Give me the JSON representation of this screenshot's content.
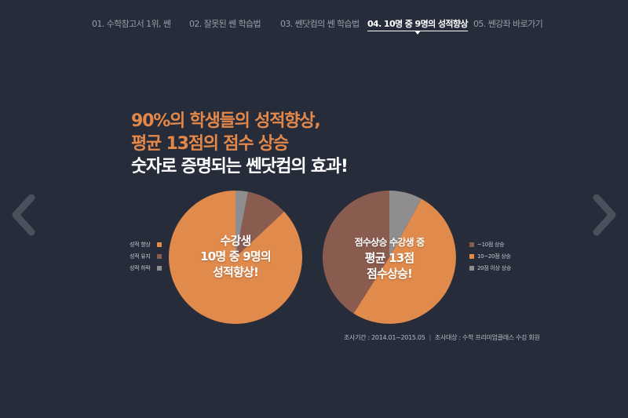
{
  "nav": {
    "items": [
      {
        "label": "01. 수학참고서 1위, 쎈"
      },
      {
        "label": "02. 잘못된 쎈 학습법"
      },
      {
        "label": "03. 쎈닷컴의 쎈 학습법"
      },
      {
        "label": "04. 10명 중 9명의 성적향상"
      },
      {
        "label": "05. 쎈강좌 바로가기"
      }
    ],
    "active_index": 3
  },
  "headline": {
    "line1": "90%의 학생들의 성적향상,",
    "line2": "평균 13점의 점수 상승",
    "line3": "숫자로 증명되는 쎈닷컴의 효과!"
  },
  "colors": {
    "background": "#272c3a",
    "orange": "#e08a4c",
    "brown": "#8a5c50",
    "gray": "#8f8d8e",
    "text_orange": "#e4884a"
  },
  "icons": {
    "prev": "chevron-left-icon",
    "next": "chevron-right-icon"
  },
  "left_chart": {
    "legend": [
      "성적 향상",
      "성적 유지",
      "성적 하락"
    ],
    "center_lines": [
      "수강생",
      "10명 중 9명의",
      "성적향상!"
    ]
  },
  "right_chart": {
    "legend": [
      "~10점 상승",
      "10~20점 상승",
      "20점 이상 상승"
    ],
    "center_lines": [
      "점수상승 수강생 중",
      "평균 13점",
      "점수상승!"
    ]
  },
  "chart_data": [
    {
      "type": "pie",
      "title": "",
      "categories": [
        "성적 향상",
        "성적 유지",
        "성적 하락"
      ],
      "values": [
        87,
        10,
        3
      ],
      "colors": [
        "#e08a4c",
        "#8a5c50",
        "#8f8d8e"
      ]
    },
    {
      "type": "pie",
      "title": "",
      "categories": [
        "~10점 상승",
        "10~20점 상승",
        "20점 이상 상승"
      ],
      "values": [
        41,
        51,
        8
      ],
      "colors": [
        "#8a5c50",
        "#e08a4c",
        "#8f8d8e"
      ]
    }
  ],
  "footnote": {
    "period": "조사기간 : 2014.01~2015.05",
    "target": "조사대상 : 수학 프리미엄클래스 수강 회원"
  }
}
